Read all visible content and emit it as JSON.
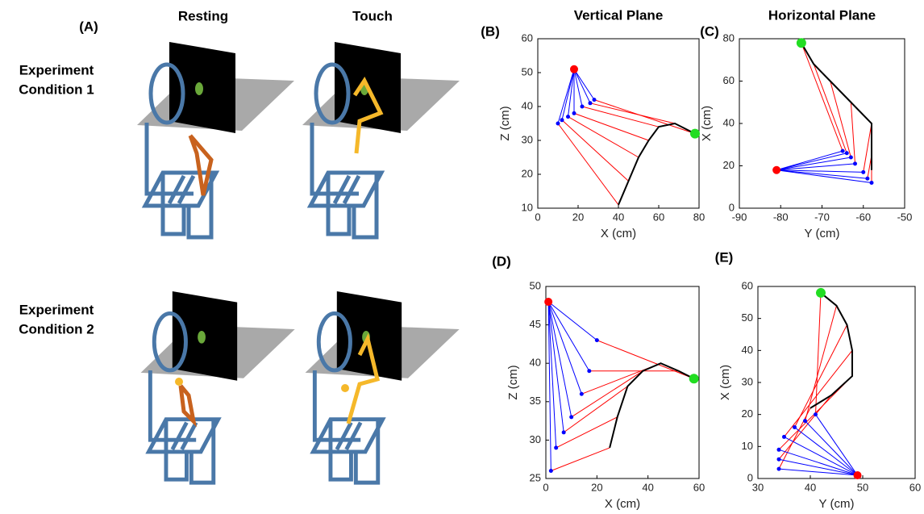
{
  "figure": {
    "panel_label": "(A)",
    "columns": [
      "Resting",
      "Touch"
    ],
    "rows": [
      [
        "Experiment",
        "Condition 1"
      ],
      [
        "Experiment",
        "Condition 2"
      ]
    ]
  },
  "chart_data": [
    {
      "type": "line",
      "label": "(B)",
      "title": "Vertical Plane",
      "xlabel": "X (cm)",
      "ylabel": "Z (cm)",
      "xlim": [
        0,
        80
      ],
      "ylim": [
        10,
        60
      ],
      "xticks": [
        0,
        20,
        40,
        60,
        80
      ],
      "yticks": [
        10,
        20,
        30,
        40,
        50,
        60
      ],
      "shoulder": {
        "x": 18,
        "y": 51,
        "color": "#ff0000"
      },
      "elbow": {
        "x": [
          10,
          12,
          15,
          18,
          22,
          26,
          28
        ],
        "y": [
          35,
          36,
          37,
          38,
          40,
          41,
          42
        ],
        "color": "#0000ff"
      },
      "hand": {
        "x": [
          40,
          45,
          50,
          55,
          60,
          68,
          78
        ],
        "y": [
          11,
          18,
          25,
          30,
          34,
          35,
          32
        ],
        "color": "#000000"
      },
      "forearm_color": "#ff0000",
      "target": {
        "x": 78,
        "y": 32,
        "color": "#22dd22"
      }
    },
    {
      "type": "line",
      "label": "(C)",
      "title": "Horizontal Plane",
      "xlabel": "Y (cm)",
      "ylabel": "X (cm)",
      "xlim": [
        -90,
        -50
      ],
      "ylim": [
        0,
        80
      ],
      "xticks": [
        -90,
        -80,
        -70,
        -60,
        -50
      ],
      "yticks": [
        0,
        20,
        40,
        60,
        80
      ],
      "shoulder": {
        "x": -81,
        "y": 18,
        "color": "#ff0000"
      },
      "elbow": {
        "x": [
          -58,
          -59,
          -60,
          -62,
          -63,
          -64,
          -65
        ],
        "y": [
          12,
          14,
          17,
          21,
          24,
          26,
          27
        ],
        "color": "#0000ff"
      },
      "hand": {
        "x": [
          -58,
          -58,
          -58,
          -63,
          -68,
          -72,
          -75
        ],
        "y": [
          18,
          25,
          40,
          50,
          60,
          68,
          78
        ],
        "color": "#000000"
      },
      "forearm_color": "#ff0000",
      "target": {
        "x": -75,
        "y": 78,
        "color": "#22dd22"
      }
    },
    {
      "type": "line",
      "label": "(D)",
      "xlabel": "X (cm)",
      "ylabel": "Z (cm)",
      "xlim": [
        0,
        60
      ],
      "ylim": [
        25,
        50
      ],
      "xticks": [
        0,
        20,
        40,
        60
      ],
      "yticks": [
        25,
        30,
        35,
        40,
        45,
        50
      ],
      "shoulder": {
        "x": 1,
        "y": 48,
        "color": "#ff0000"
      },
      "elbow": {
        "x": [
          2,
          4,
          7,
          10,
          14,
          17,
          20
        ],
        "y": [
          26,
          29,
          31,
          33,
          36,
          39,
          43
        ],
        "color": "#0000ff"
      },
      "hand": {
        "x": [
          25,
          28,
          32,
          38,
          45,
          52,
          58
        ],
        "y": [
          29,
          33,
          37,
          39,
          40,
          39,
          38
        ],
        "color": "#000000"
      },
      "forearm_color": "#ff0000",
      "target": {
        "x": 58,
        "y": 38,
        "color": "#22dd22"
      }
    },
    {
      "type": "line",
      "label": "(E)",
      "xlabel": "Y (cm)",
      "ylabel": "X (cm)",
      "xlim": [
        30,
        60
      ],
      "ylim": [
        0,
        60
      ],
      "xticks": [
        30,
        40,
        50,
        60
      ],
      "yticks": [
        0,
        10,
        20,
        30,
        40,
        50,
        60
      ],
      "shoulder": {
        "x": 49,
        "y": 1,
        "color": "#ff0000"
      },
      "elbow": {
        "x": [
          34,
          34,
          34,
          35,
          37,
          39,
          41
        ],
        "y": [
          3,
          6,
          9,
          13,
          16,
          18,
          20
        ],
        "color": "#0000ff"
      },
      "hand": {
        "x": [
          40,
          44,
          48,
          48,
          47,
          45,
          42
        ],
        "y": [
          22,
          26,
          32,
          40,
          48,
          54,
          58
        ],
        "color": "#000000"
      },
      "forearm_color": "#ff0000",
      "target": {
        "x": 42,
        "y": 58,
        "color": "#22dd22"
      }
    }
  ]
}
